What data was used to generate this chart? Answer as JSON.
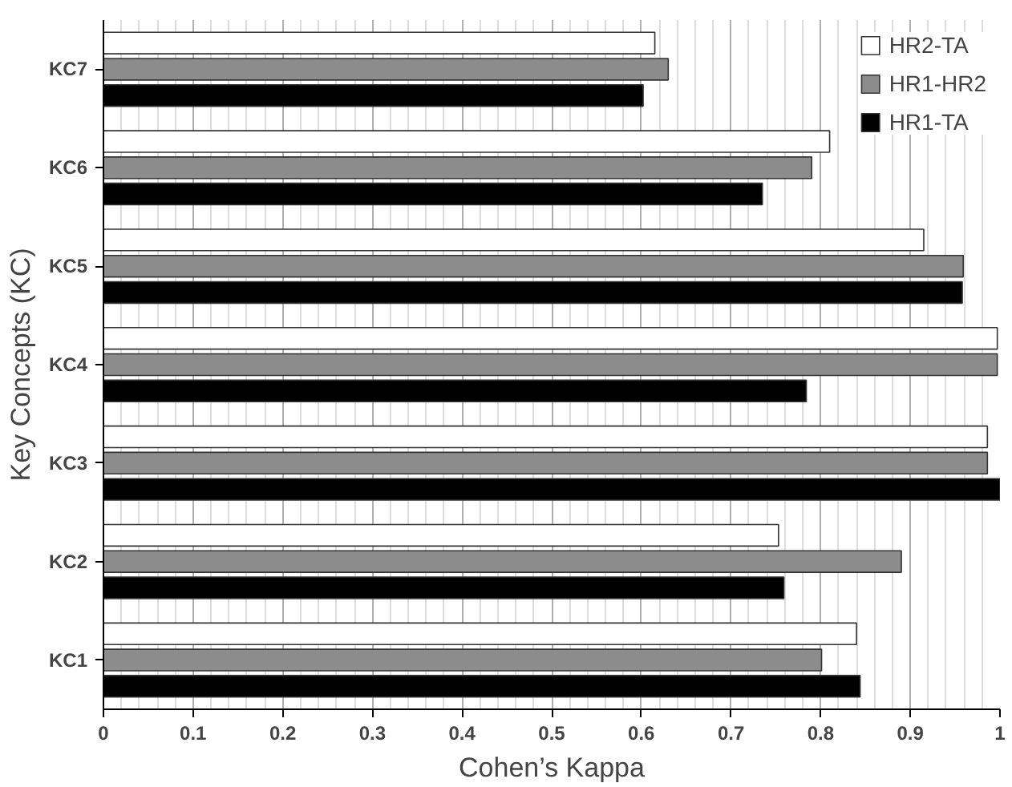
{
  "chart_data": {
    "type": "bar",
    "orientation": "horizontal",
    "xlabel": "Cohen’s Kappa",
    "ylabel": "Key Concepts (KC)",
    "categories": [
      "KC7",
      "KC6",
      "KC5",
      "KC4",
      "KC3",
      "KC2",
      "KC1"
    ],
    "series": [
      {
        "name": "HR2-TA",
        "color": "#ffffff",
        "values": [
          0.615,
          0.81,
          0.915,
          0.997,
          0.986,
          0.753,
          0.84
        ]
      },
      {
        "name": "HR1-HR2",
        "color": "#8c8c8c",
        "values": [
          0.63,
          0.79,
          0.959,
          0.997,
          0.986,
          0.89,
          0.801
        ]
      },
      {
        "name": "HR1-TA",
        "color": "#000000",
        "values": [
          0.602,
          0.735,
          0.958,
          0.784,
          1.0,
          0.759,
          0.844
        ]
      }
    ],
    "xlim": [
      0,
      1
    ],
    "xticks": [
      0,
      0.1,
      0.2,
      0.3,
      0.4,
      0.5,
      0.6,
      0.7,
      0.8,
      0.9,
      1
    ],
    "grid": "x",
    "legend": "top right"
  }
}
